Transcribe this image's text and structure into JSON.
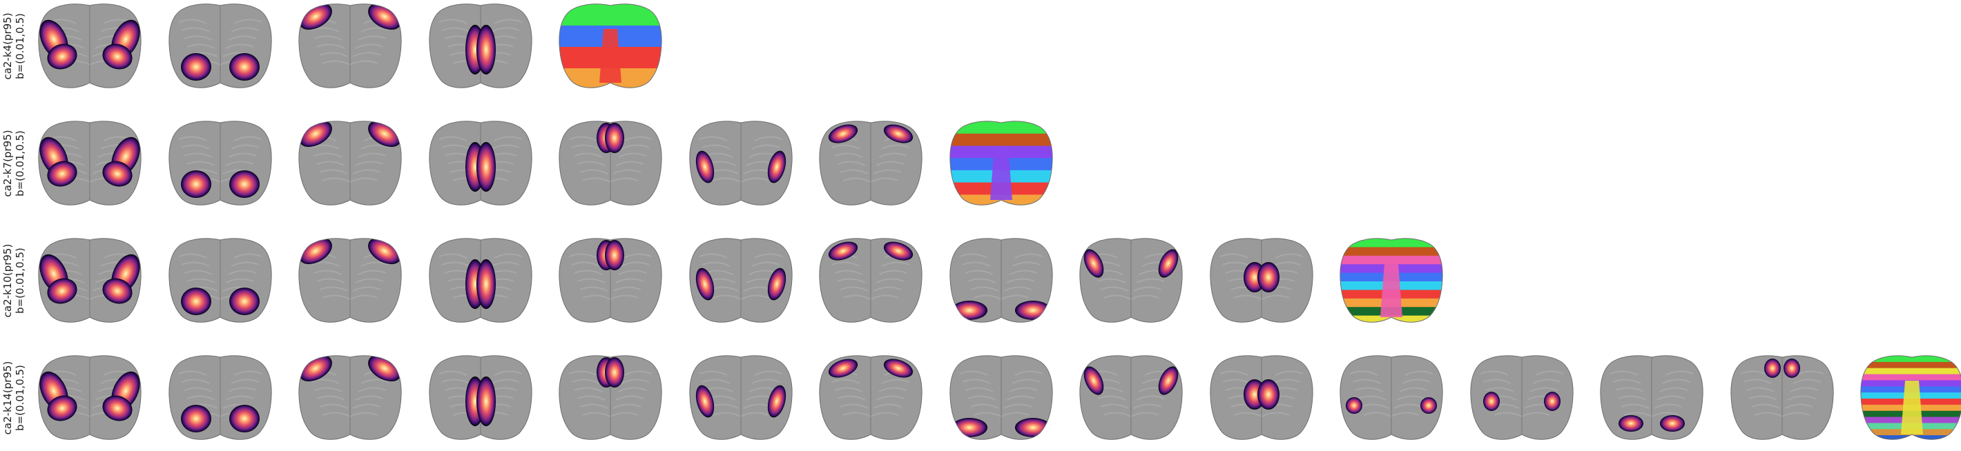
{
  "figure": {
    "rows": [
      {
        "label_line1": "ca2-k4(pr95)",
        "label_line2": "b=(0.01,0.5)",
        "components": [
          "posterior-lateral",
          "posterior-medial",
          "anterior-lateral",
          "midline"
        ],
        "partition": {
          "colors": [
            "#39e84a",
            "#3f73f5",
            "#ef3c37",
            "#f3a23e"
          ]
        }
      },
      {
        "label_line1": "ca2-k7(pr95)",
        "label_line2": "b=(0.01,0.5)",
        "components": [
          "posterior-lateral",
          "posterior-medial",
          "anterior-lateral",
          "midline",
          "anterior-center",
          "lateral-pair",
          "anterior-arc"
        ],
        "partition": {
          "colors": [
            "#39e84a",
            "#c4541c",
            "#8a46ee",
            "#3f73f5",
            "#2fd0ef",
            "#ef3c37",
            "#f3a23e"
          ]
        }
      },
      {
        "label_line1": "ca2-k10(pr95)",
        "label_line2": "b=(0.01,0.5)",
        "components": [
          "posterior-lateral",
          "posterior-medial",
          "anterior-lateral",
          "midline",
          "anterior-center",
          "lateral-pair",
          "anterior-arc",
          "posterior-band",
          "lateral-upper",
          "center-triangle"
        ],
        "partition": {
          "colors": [
            "#39e84a",
            "#c4541c",
            "#ee5dae",
            "#8a46ee",
            "#3f73f5",
            "#2fd0ef",
            "#ef3c37",
            "#f3a23e",
            "#176b2d",
            "#e8e23a"
          ]
        }
      },
      {
        "label_line1": "ca2-k14(pr95)",
        "label_line2": "b=(0.01,0.5)",
        "components": [
          "posterior-lateral",
          "posterior-medial",
          "anterior-lateral",
          "midline",
          "anterior-center",
          "lateral-pair",
          "anterior-arc",
          "posterior-band",
          "lateral-upper",
          "center-triangle",
          "lateral-small",
          "mid-lateral",
          "posterior-pair",
          "anterior-small"
        ],
        "partition": {
          "colors": [
            "#39e84a",
            "#c4541c",
            "#e8e23a",
            "#ee5dae",
            "#8a46ee",
            "#3f73f5",
            "#2fd0ef",
            "#ef3c37",
            "#f3a23e",
            "#176b2d",
            "#a64ad1",
            "#5bd6a0",
            "#d9903a",
            "#2b5fd0"
          ]
        }
      }
    ],
    "colormap": [
      "#000004",
      "#3b0f70",
      "#8c2981",
      "#de4968",
      "#fe9f6d",
      "#fcfdbf"
    ],
    "background_gray": "#9a9a9a"
  }
}
